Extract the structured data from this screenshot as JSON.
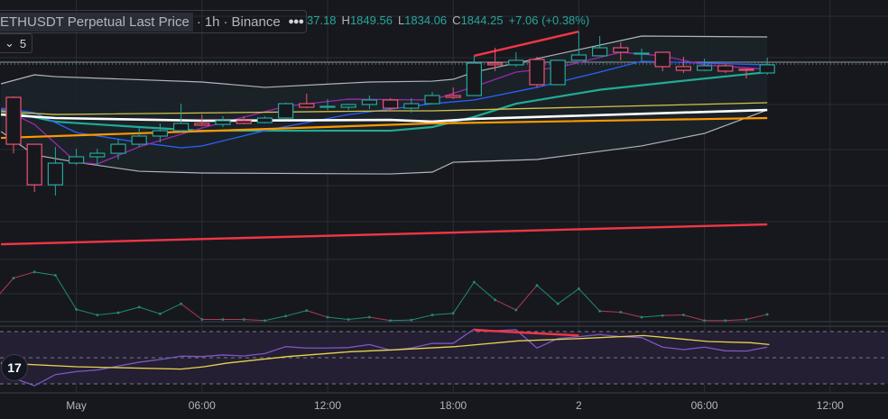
{
  "legend": {
    "title": "ETHUSDT Perpetual Last Price",
    "interval": "1h",
    "exchange": "Binance",
    "more_icon": "ellipsis-icon",
    "open_partial": "37.18",
    "high_label": "H",
    "high": "1849.56",
    "low_label": "L",
    "low": "1834.06",
    "close_label": "C",
    "close": "1844.25",
    "change": "+7.06 (+0.38%)"
  },
  "indicators_toggle": {
    "icon": "chevron-down-icon",
    "count": "5"
  },
  "logo_text": "TV",
  "colors": {
    "background": "#17181e",
    "up": "#26a69a",
    "down": "#ef5370",
    "grid": "#2a2d35",
    "bb_fill": "#1b2329"
  },
  "chart_data": {
    "type": "candlestick",
    "title": "ETHUSDT Perpetual Last Price · 1h · Binance",
    "x_tick_labels": [
      {
        "i": 3,
        "label": "May"
      },
      {
        "i": 9,
        "label": "06:00"
      },
      {
        "i": 15,
        "label": "12:00"
      },
      {
        "i": 21,
        "label": "18:00"
      },
      {
        "i": 27,
        "label": "2"
      },
      {
        "i": 33,
        "label": "06:00"
      },
      {
        "i": 39,
        "label": "12:00"
      }
    ],
    "ylim": [
      1683,
      1897.5
    ],
    "last_price": 1844.25,
    "candles": [
      [
        1817.6,
        1818.4,
        1771.7,
        1779.1
      ],
      [
        1779.1,
        1779.1,
        1739.9,
        1745.8
      ],
      [
        1745.8,
        1776.9,
        1737.0,
        1763.6
      ],
      [
        1763.6,
        1775.4,
        1762.1,
        1768.8
      ],
      [
        1768.8,
        1775.4,
        1761.4,
        1771.7
      ],
      [
        1771.7,
        1783.6,
        1766.6,
        1779.1
      ],
      [
        1779.1,
        1792.5,
        1776.9,
        1785.8
      ],
      [
        1785.8,
        1796.2,
        1780.6,
        1790.2
      ],
      [
        1790.2,
        1812.4,
        1788.7,
        1796.2
      ],
      [
        1796.2,
        1803.5,
        1793.9,
        1794.7
      ],
      [
        1795.4,
        1802.1,
        1793.2,
        1798.4
      ],
      [
        1798.4,
        1802.1,
        1795.4,
        1796.2
      ],
      [
        1796.9,
        1802.1,
        1796.2,
        1800.6
      ],
      [
        1800.6,
        1813.2,
        1799.9,
        1812.4
      ],
      [
        1812.4,
        1820.6,
        1808.7,
        1809.5
      ],
      [
        1809.5,
        1816.1,
        1807.2,
        1810.2
      ],
      [
        1809.5,
        1812.4,
        1807.2,
        1811.7
      ],
      [
        1811.7,
        1819.1,
        1808.0,
        1815.4
      ],
      [
        1815.4,
        1816.9,
        1807.2,
        1808.7
      ],
      [
        1808.7,
        1816.9,
        1805.0,
        1812.4
      ],
      [
        1812.4,
        1822.0,
        1811.7,
        1819.1
      ],
      [
        1819.1,
        1825.8,
        1816.1,
        1817.6
      ],
      [
        1819.1,
        1851.7,
        1819.1,
        1845.7
      ],
      [
        1845.7,
        1858.3,
        1839.1,
        1844.3
      ],
      [
        1844.3,
        1854.6,
        1842.8,
        1848.0
      ],
      [
        1848.7,
        1850.9,
        1825.8,
        1828.0
      ],
      [
        1828.0,
        1848.7,
        1828.0,
        1848.0
      ],
      [
        1848.0,
        1871.6,
        1847.2,
        1852.4
      ],
      [
        1851.7,
        1867.9,
        1851.7,
        1858.3
      ],
      [
        1858.3,
        1862.8,
        1848.0,
        1854.6
      ],
      [
        1853.1,
        1857.6,
        1848.0,
        1853.9
      ],
      [
        1854.6,
        1854.6,
        1839.1,
        1842.8
      ],
      [
        1842.8,
        1850.9,
        1837.6,
        1839.8
      ],
      [
        1839.8,
        1849.4,
        1839.1,
        1843.5
      ],
      [
        1843.5,
        1845.0,
        1837.6,
        1839.1
      ],
      [
        1840.6,
        1841.3,
        1833.1,
        1839.8
      ],
      [
        1837.6,
        1850.2,
        1836.1,
        1844.3
      ]
    ],
    "overlays": [
      {
        "name": "bb-upper",
        "color": "#b2b5be",
        "width": 1.2,
        "points": [
          [
            -0.6,
            1828.7
          ],
          [
            1,
            1836.1
          ],
          [
            2,
            1834.6
          ],
          [
            9,
            1830.2
          ],
          [
            12,
            1825.8
          ],
          [
            17,
            1830.2
          ],
          [
            20,
            1830.9
          ],
          [
            21,
            1832.4
          ],
          [
            22,
            1838.3
          ],
          [
            27,
            1856.8
          ],
          [
            30,
            1867.9
          ],
          [
            36,
            1867.2
          ]
        ]
      },
      {
        "name": "bb-lower",
        "color": "#b2b5be",
        "width": 1.2,
        "points": [
          [
            -0.6,
            1789.5
          ],
          [
            1,
            1770.3
          ],
          [
            3,
            1764.3
          ],
          [
            6,
            1756.9
          ],
          [
            9,
            1755.5
          ],
          [
            18,
            1754.7
          ],
          [
            20,
            1756.2
          ],
          [
            21,
            1764.3
          ],
          [
            25,
            1766.6
          ],
          [
            30,
            1777.7
          ],
          [
            33,
            1788.0
          ],
          [
            36,
            1807.2
          ]
        ]
      },
      {
        "name": "ema-teal",
        "color": "#22ab94",
        "width": 2.2,
        "points": [
          [
            -0.6,
            1807.2
          ],
          [
            2,
            1797.6
          ],
          [
            6,
            1793.2
          ],
          [
            9,
            1790.2
          ],
          [
            13,
            1790.2
          ],
          [
            18,
            1790.2
          ],
          [
            20,
            1793.2
          ],
          [
            22,
            1801.6
          ],
          [
            24,
            1812.4
          ],
          [
            28,
            1823.8
          ],
          [
            32,
            1831.2
          ],
          [
            36,
            1838.3
          ]
        ]
      },
      {
        "name": "ma-blue",
        "color": "#2962ff",
        "width": 1.3,
        "points": [
          [
            -0.6,
            1808.7
          ],
          [
            1,
            1805.0
          ],
          [
            3,
            1788.7
          ],
          [
            6,
            1780.6
          ],
          [
            8,
            1776.2
          ],
          [
            9,
            1777.7
          ],
          [
            12,
            1790.2
          ],
          [
            16,
            1803.5
          ],
          [
            20,
            1812.4
          ],
          [
            22,
            1815.4
          ],
          [
            25,
            1825.8
          ],
          [
            28,
            1838.3
          ],
          [
            30,
            1847.2
          ],
          [
            33,
            1845.7
          ],
          [
            36,
            1844.3
          ]
        ]
      },
      {
        "name": "ma-purple",
        "color": "#9c27b0",
        "width": 1.3,
        "points": [
          [
            -0.6,
            1808.7
          ],
          [
            1,
            1795.4
          ],
          [
            3,
            1764.3
          ],
          [
            4,
            1762.9
          ],
          [
            6,
            1776.9
          ],
          [
            9,
            1792.5
          ],
          [
            13,
            1810.2
          ],
          [
            16,
            1816.1
          ],
          [
            20,
            1815.4
          ],
          [
            22,
            1826.3
          ],
          [
            24,
            1838.3
          ],
          [
            26,
            1842.0
          ],
          [
            29,
            1854.6
          ],
          [
            31,
            1851.7
          ],
          [
            33,
            1844.3
          ],
          [
            36,
            1840.6
          ]
        ]
      },
      {
        "name": "ma-yellow",
        "color": "#d4c34a",
        "width": 1.3,
        "points": [
          [
            -0.6,
            1805.8
          ],
          [
            2,
            1803.5
          ],
          [
            18,
            1806.5
          ],
          [
            20,
            1806.5
          ],
          [
            36,
            1813.2
          ]
        ]
      },
      {
        "name": "ma-white",
        "color": "#ffffff",
        "width": 2.6,
        "points": [
          [
            -0.6,
            1803.5
          ],
          [
            2,
            1800.6
          ],
          [
            9,
            1798.4
          ],
          [
            18,
            1799.1
          ],
          [
            20,
            1797.7
          ],
          [
            22,
            1799.9
          ],
          [
            36,
            1807.2
          ]
        ]
      },
      {
        "name": "ma-orange",
        "color": "#ff9800",
        "width": 2.2,
        "points": [
          [
            -0.6,
            1784.3
          ],
          [
            20,
            1796.2
          ],
          [
            36,
            1800.6
          ]
        ]
      },
      {
        "name": "ma-red-long",
        "color": "#f23645",
        "width": 2.4,
        "points": [
          [
            -0.6,
            1697.0
          ],
          [
            36,
            1713.3
          ]
        ]
      },
      {
        "name": "divergence-line",
        "color": "#f23645",
        "width": 2.4,
        "points": [
          [
            22,
            1851.7
          ],
          [
            27,
            1871.6
          ]
        ]
      }
    ],
    "oscillator": {
      "name": "oscillator",
      "range": [
        0,
        100
      ],
      "start_index": -1,
      "values": [
        35,
        78,
        89,
        83,
        22,
        12,
        16,
        26,
        14,
        32,
        4,
        4,
        4,
        2,
        10,
        20,
        8,
        4,
        8,
        2,
        3,
        12,
        15,
        71,
        39,
        21,
        65,
        32,
        59,
        19,
        17,
        8,
        11,
        12,
        2,
        2,
        4,
        13
      ],
      "red_segments": [
        0,
        1,
        9,
        10,
        11,
        12,
        15,
        18,
        24,
        25,
        29,
        30,
        32,
        33,
        34,
        35,
        36
      ]
    },
    "rsi": {
      "name": "rsi",
      "levels": [
        70,
        50,
        30
      ],
      "values": [
        34.4,
        28.6,
        37.1,
        39.4,
        40.6,
        43.6,
        46.6,
        48.6,
        51.2,
        50.9,
        52.1,
        51.4,
        53.2,
        58.5,
        57.4,
        57.4,
        57.8,
        60.1,
        55.8,
        57.4,
        61.0,
        61.0,
        71.9,
        70.7,
        71.4,
        57.4,
        64.7,
        66.1,
        67.7,
        66.1,
        65.4,
        58.1,
        56.2,
        58.1,
        55.3,
        55.1,
        58.1
      ],
      "ma_points": [
        [
          -0.6,
          45.9
        ],
        [
          3,
          43.1
        ],
        [
          8,
          41.3
        ],
        [
          9.1,
          43.1
        ],
        [
          10.2,
          45.9
        ],
        [
          13.1,
          50.9
        ],
        [
          16.1,
          54.6
        ],
        [
          18.1,
          56.0
        ],
        [
          21.1,
          58.5
        ],
        [
          24.1,
          62.9
        ],
        [
          27.1,
          64.7
        ],
        [
          30.1,
          67.0
        ],
        [
          33.2,
          62.4
        ],
        [
          35.2,
          61.5
        ],
        [
          36.1,
          60.1
        ]
      ],
      "divergence": [
        [
          22,
          71.2
        ],
        [
          27,
          67.0
        ]
      ]
    }
  }
}
